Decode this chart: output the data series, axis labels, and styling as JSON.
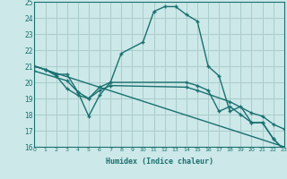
{
  "xlabel": "Humidex (Indice chaleur)",
  "bg_color": "#cce8e8",
  "grid_color": "#aacccc",
  "line_color": "#1a7070",
  "x_min": 0,
  "x_max": 23,
  "y_min": 16,
  "y_max": 25,
  "line1_x": [
    0,
    1,
    2,
    3,
    4,
    5,
    6,
    7,
    8,
    10,
    11,
    12,
    13,
    14,
    15,
    16,
    17,
    18,
    19,
    20,
    21,
    22,
    23
  ],
  "line1_y": [
    21.0,
    20.8,
    20.5,
    20.5,
    19.4,
    17.9,
    19.2,
    20.0,
    21.8,
    22.5,
    24.4,
    24.7,
    24.7,
    24.2,
    23.8,
    21.0,
    20.4,
    18.2,
    18.5,
    17.5,
    17.5,
    16.5,
    15.8
  ],
  "line2_x": [
    0,
    1,
    2,
    3,
    4,
    5,
    6,
    7,
    14,
    15,
    16,
    17,
    18,
    19,
    20,
    21,
    22,
    23
  ],
  "line2_y": [
    21.0,
    20.8,
    20.4,
    19.6,
    19.2,
    19.0,
    19.7,
    20.0,
    20.0,
    19.8,
    19.5,
    18.2,
    18.5,
    18.0,
    17.5,
    17.5,
    16.5,
    15.8
  ],
  "line3_x": [
    0,
    3,
    4,
    5,
    6,
    7,
    14,
    15,
    18,
    20,
    21,
    22,
    23
  ],
  "line3_y": [
    20.7,
    20.1,
    19.4,
    19.0,
    19.5,
    19.8,
    19.7,
    19.5,
    18.8,
    18.1,
    17.9,
    17.4,
    17.1
  ],
  "line4_x": [
    0,
    23
  ],
  "line4_y": [
    21.0,
    16.0
  ]
}
